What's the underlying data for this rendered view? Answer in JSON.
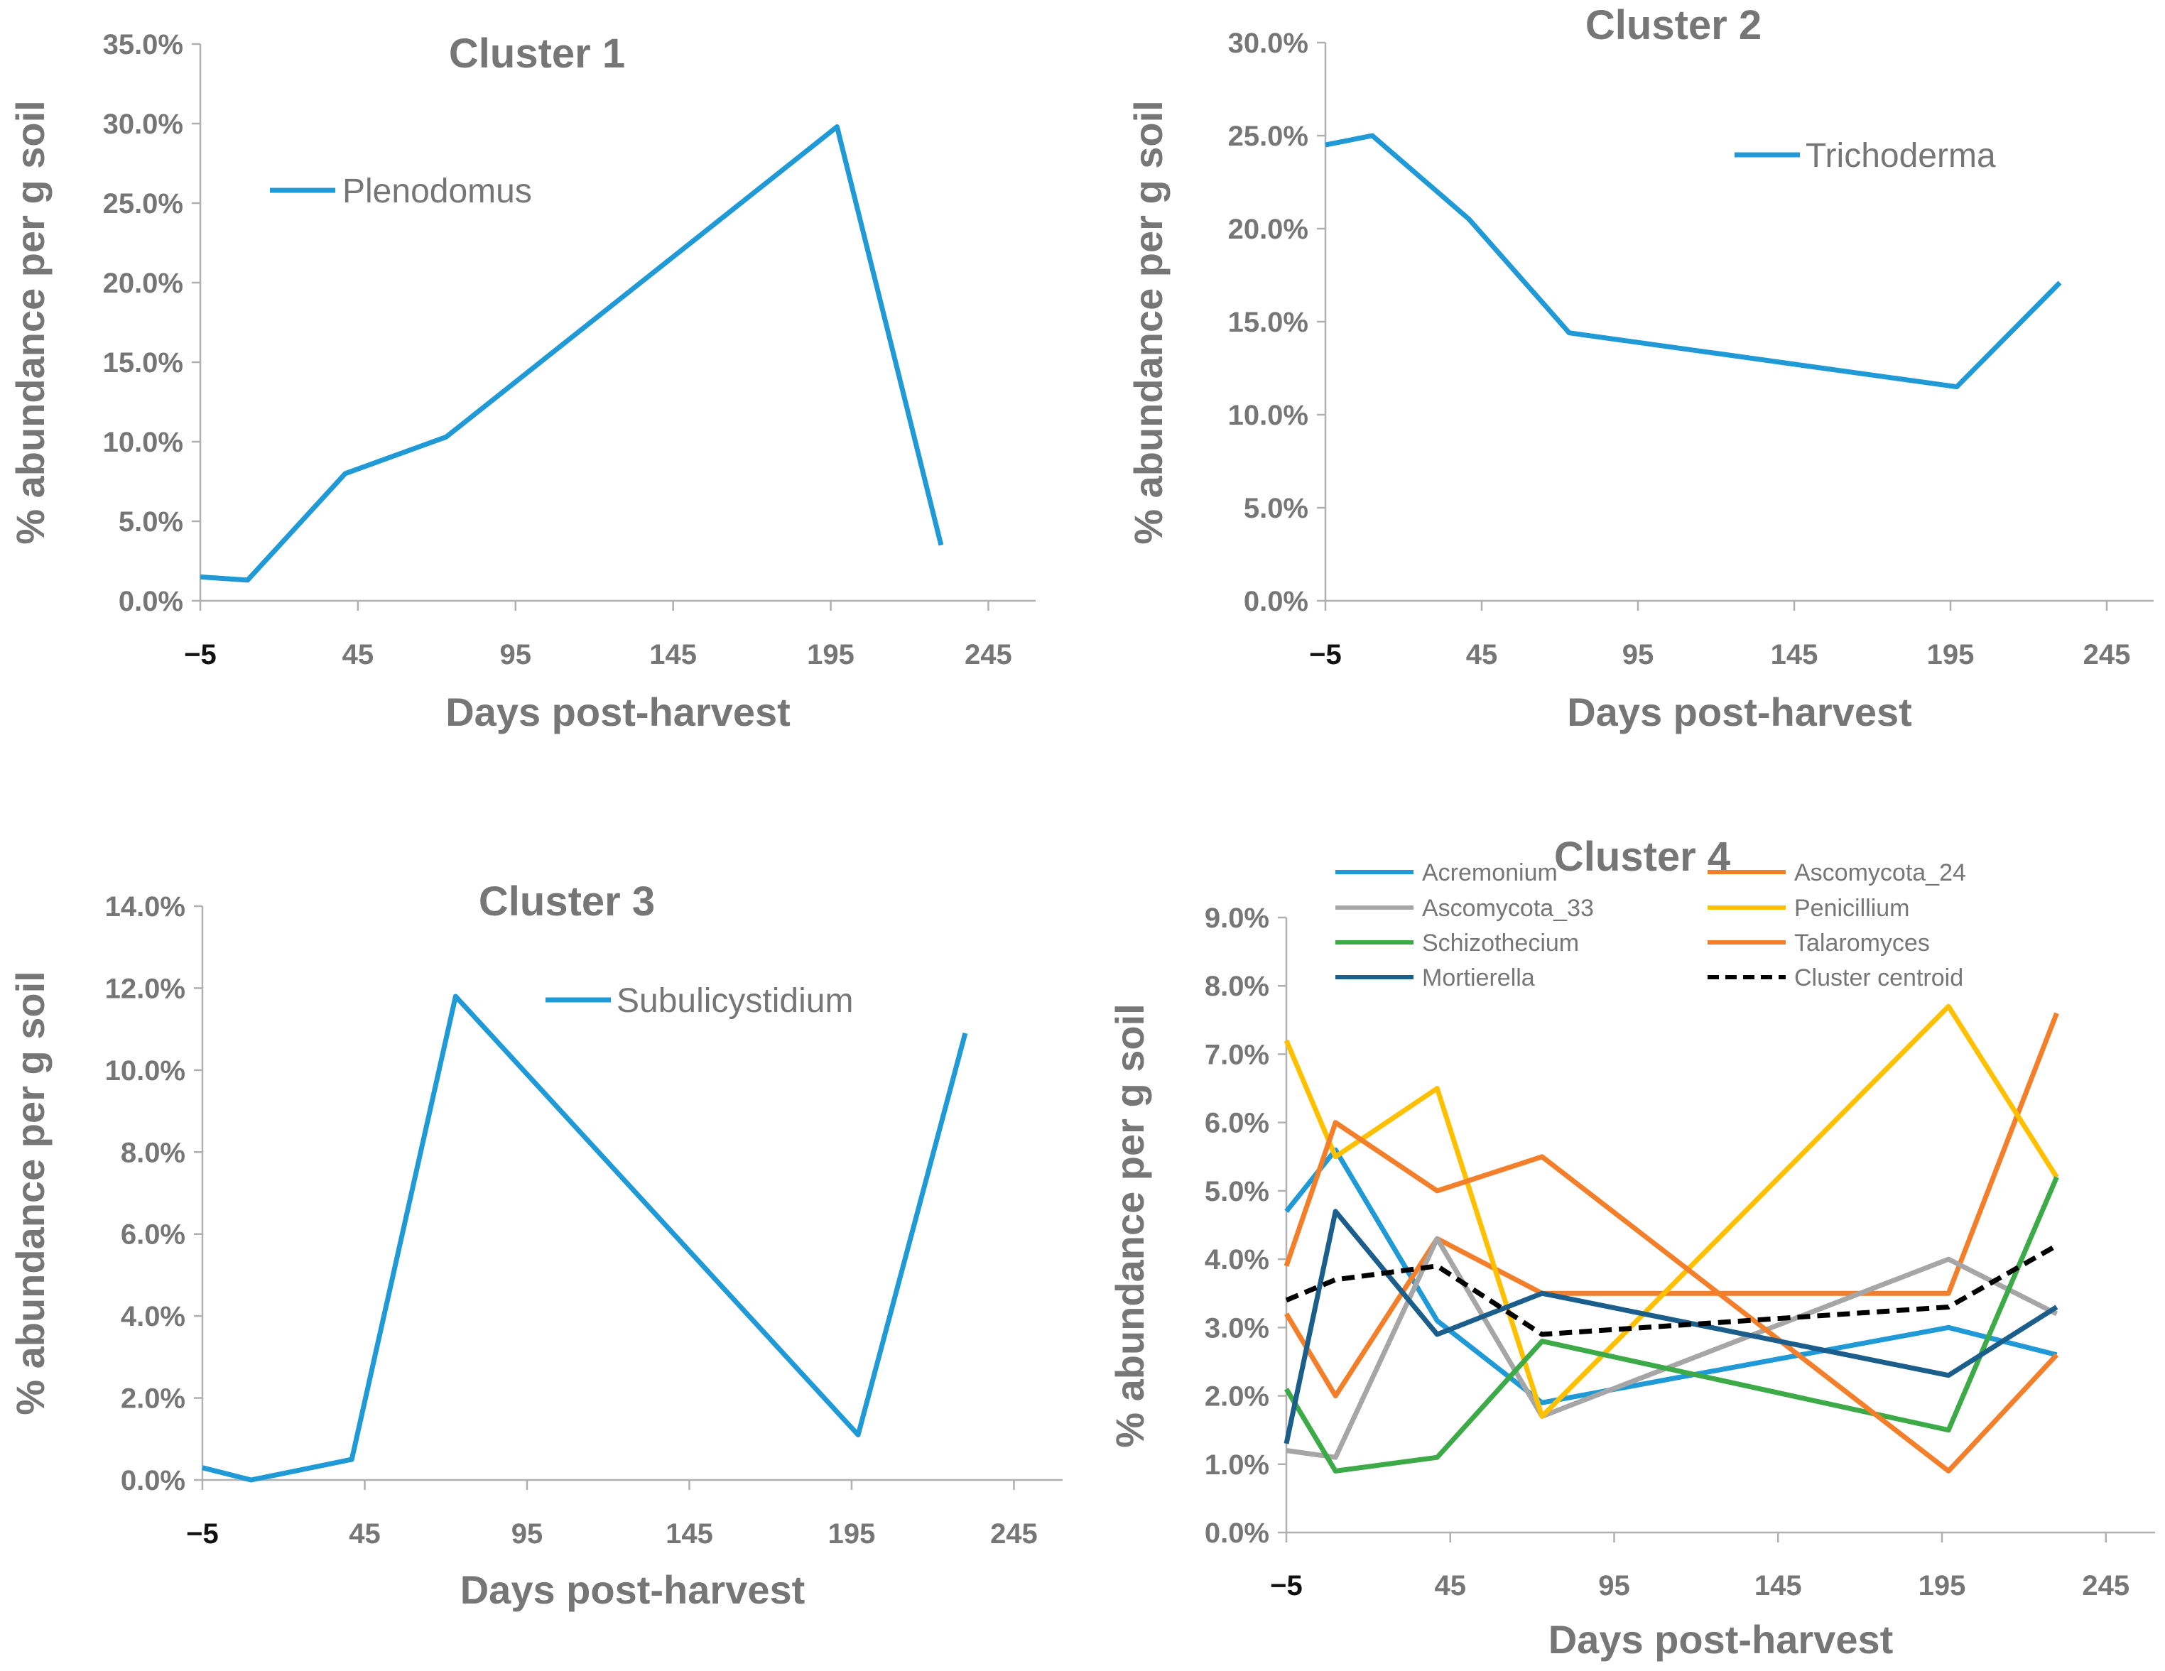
{
  "chart_data": [
    {
      "type": "line",
      "title": "Cluster 1",
      "xlabel": "Days post-harvest",
      "ylabel": "% abundance  per g soil",
      "xlim": [
        -5,
        260
      ],
      "ylim": [
        0,
        0.35
      ],
      "x_ticks": [
        -5,
        45,
        95,
        145,
        195,
        245
      ],
      "x_tick_labels": [
        "−5",
        "45",
        "95",
        "145",
        "195",
        "245"
      ],
      "y_ticks": [
        0,
        0.05,
        0.1,
        0.15,
        0.2,
        0.25,
        0.3,
        0.35
      ],
      "y_tick_labels": [
        "0.0%",
        "5.0%",
        "10.0%",
        "15.0%",
        "20.0%",
        "25.0%",
        "30.0%",
        "35.0%"
      ],
      "grid": false,
      "legend_position": "top-left",
      "series": [
        {
          "name": "Plenodomus",
          "color": "#1f9ad6",
          "dash": false,
          "x": [
            -5,
            10,
            41,
            73,
            197,
            230
          ],
          "y": [
            0.015,
            0.013,
            0.08,
            0.103,
            0.298,
            0.035
          ]
        }
      ]
    },
    {
      "type": "line",
      "title": "Cluster 2",
      "xlabel": "Days post-harvest",
      "ylabel": "% abundance  per g soil",
      "xlim": [
        -5,
        260
      ],
      "ylim": [
        0,
        0.3
      ],
      "x_ticks": [
        -5,
        45,
        95,
        145,
        195,
        245
      ],
      "x_tick_labels": [
        "−5",
        "45",
        "95",
        "145",
        "195",
        "245"
      ],
      "y_ticks": [
        0,
        0.05,
        0.1,
        0.15,
        0.2,
        0.25,
        0.3
      ],
      "y_tick_labels": [
        "0.0%",
        "5.0%",
        "10.0%",
        "15.0%",
        "20.0%",
        "25.0%",
        "30.0%"
      ],
      "grid": false,
      "legend_position": "top-right",
      "series": [
        {
          "name": "Trichoderma",
          "color": "#1f9ad6",
          "dash": false,
          "x": [
            -5,
            10,
            41,
            73,
            197,
            230
          ],
          "y": [
            0.245,
            0.25,
            0.205,
            0.144,
            0.115,
            0.171
          ]
        }
      ]
    },
    {
      "type": "line",
      "title": "Cluster 3",
      "xlabel": "Days post-harvest",
      "ylabel": "% abundance  per g soil",
      "xlim": [
        -5,
        260
      ],
      "ylim": [
        0,
        0.14
      ],
      "x_ticks": [
        -5,
        45,
        95,
        145,
        195,
        245
      ],
      "x_tick_labels": [
        "−5",
        "45",
        "95",
        "145",
        "195",
        "245"
      ],
      "y_ticks": [
        0,
        0.02,
        0.04,
        0.06,
        0.08,
        0.1,
        0.12,
        0.14
      ],
      "y_tick_labels": [
        "0.0%",
        "2.0%",
        "4.0%",
        "6.0%",
        "8.0%",
        "10.0%",
        "12.0%",
        "14.0%"
      ],
      "grid": false,
      "legend_position": "top-center",
      "series": [
        {
          "name": "Subulicystidium",
          "color": "#1f9ad6",
          "dash": false,
          "x": [
            -5,
            10,
            41,
            73,
            197,
            230
          ],
          "y": [
            0.003,
            0.0,
            0.005,
            0.118,
            0.011,
            0.109
          ]
        }
      ]
    },
    {
      "type": "line",
      "title": "Cluster 4",
      "xlabel": "Days post-harvest",
      "ylabel": "% abundance  per g soil",
      "xlim": [
        -5,
        260
      ],
      "ylim": [
        0,
        0.09
      ],
      "x_ticks": [
        -5,
        45,
        95,
        145,
        195,
        245
      ],
      "x_tick_labels": [
        "−5",
        "45",
        "95",
        "145",
        "195",
        "245"
      ],
      "y_ticks": [
        0,
        0.01,
        0.02,
        0.03,
        0.04,
        0.05,
        0.06,
        0.07,
        0.08,
        0.09
      ],
      "y_tick_labels": [
        "0.0%",
        "1.0%",
        "2.0%",
        "3.0%",
        "4.0%",
        "5.0%",
        "6.0%",
        "7.0%",
        "8.0%",
        "9.0%"
      ],
      "grid": false,
      "legend_position": "top",
      "series": [
        {
          "name": "Acremonium",
          "color": "#1f9ad6",
          "dash": false,
          "x": [
            -5,
            10,
            41,
            73,
            197,
            230
          ],
          "y": [
            0.047,
            0.056,
            0.031,
            0.019,
            0.03,
            0.026
          ]
        },
        {
          "name": "Ascomycota_24",
          "color": "#f47f2a",
          "dash": false,
          "x": [
            -5,
            10,
            41,
            73,
            197,
            230
          ],
          "y": [
            0.032,
            0.02,
            0.043,
            0.035,
            0.035,
            0.076
          ]
        },
        {
          "name": "Ascomycota_33",
          "color": "#a6a6a6",
          "dash": false,
          "x": [
            -5,
            10,
            41,
            73,
            197,
            230
          ],
          "y": [
            0.012,
            0.011,
            0.043,
            0.017,
            0.04,
            0.032
          ]
        },
        {
          "name": "Penicillium",
          "color": "#ffc000",
          "dash": false,
          "x": [
            -5,
            10,
            41,
            73,
            197,
            230
          ],
          "y": [
            0.072,
            0.055,
            0.065,
            0.017,
            0.077,
            0.052
          ]
        },
        {
          "name": "Schizothecium",
          "color": "#3daa48",
          "dash": false,
          "x": [
            -5,
            10,
            41,
            73,
            197,
            230
          ],
          "y": [
            0.021,
            0.009,
            0.011,
            0.028,
            0.015,
            0.052
          ]
        },
        {
          "name": "Talaromyces",
          "color": "#f47f2a",
          "dash": false,
          "x": [
            -5,
            10,
            41,
            73,
            197,
            230
          ],
          "y": [
            0.039,
            0.06,
            0.05,
            0.055,
            0.009,
            0.026
          ]
        },
        {
          "name": "Mortierella",
          "color": "#1b5e8c",
          "dash": false,
          "x": [
            -5,
            10,
            41,
            73,
            197,
            230
          ],
          "y": [
            0.013,
            0.047,
            0.029,
            0.035,
            0.023,
            0.033
          ]
        },
        {
          "name": "Cluster centroid",
          "color": "#000000",
          "dash": true,
          "x": [
            -5,
            10,
            41,
            73,
            197,
            230
          ],
          "y": [
            0.034,
            0.037,
            0.039,
            0.029,
            0.033,
            0.042
          ]
        }
      ]
    }
  ]
}
